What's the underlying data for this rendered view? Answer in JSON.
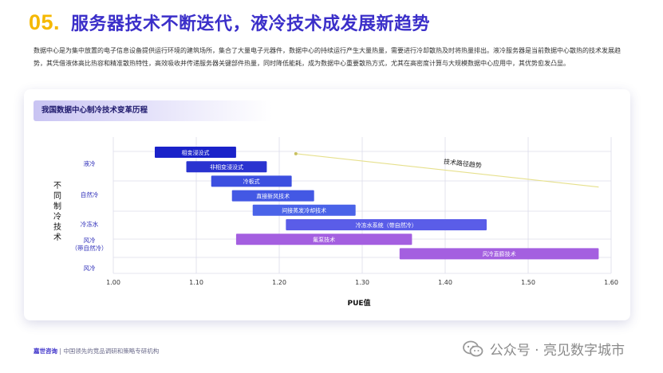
{
  "header": {
    "number": "05.",
    "title": "服务器技术不断迭代，液冷技术成发展新趋势"
  },
  "intro": "数据中心是为集中放置的电子信息设备提供运行环境的建筑场所，集合了大量电子元器件，数据中心的持续运行产生大量热量，需要进行冷却散热及时将热量排出。液冷服务器是当前数据中心散热的技术发展趋势，其凭借液体高比热容和精准散热特性，高效吸收并传递服务器关键部件热量，同时降低能耗，成为数据中心重要散热方式，尤其在高密度计算与大规模数据中心应用中，其优势愈发凸显。",
  "card_title": "我国数据中心制冷技术变革历程",
  "footer": {
    "brand": "嘉世咨询",
    "separator": "|",
    "tagline": "中国领先的竞品调研和策略专研机构"
  },
  "watermark": "公众号 · 亮见数字城市",
  "colors": {
    "title": "#3b2fc9",
    "number": "#f5b800",
    "liquid_dark": "#1a22c9",
    "liquid_mid": "#3c4fe0",
    "liquid_light": "#4a63e8",
    "mixed": "#5a5de8",
    "air": "#a45fe0",
    "trend_line": "#e6e08c"
  },
  "chart_data": {
    "type": "gantt",
    "xlabel": "PUE值",
    "ylabel": "不同制冷技术",
    "xlim": [
      1.0,
      1.6
    ],
    "xticks": [
      1.0,
      1.1,
      1.2,
      1.3,
      1.4,
      1.5,
      1.6
    ],
    "xtick_labels": [
      "1.00",
      "1.10",
      "1.20",
      "1.30",
      "1.40",
      "1.50",
      "1.60"
    ],
    "grid": true,
    "categories": [
      {
        "label": "液冷",
        "lines": [
          "液冷"
        ]
      },
      {
        "label": "自然冷",
        "lines": [
          "自然冷"
        ]
      },
      {
        "label": "冷冻水",
        "lines": [
          "冷冻水"
        ]
      },
      {
        "label": "风冷（带自然冷）",
        "lines": [
          "风冷",
          "（带自然冷）"
        ]
      },
      {
        "label": "风冷",
        "lines": [
          "风冷"
        ]
      }
    ],
    "bars": [
      {
        "label": "相变浸没式",
        "start": 1.05,
        "end": 1.148,
        "color": "#1a22c9"
      },
      {
        "label": "非相变浸没式",
        "start": 1.088,
        "end": 1.185,
        "color": "#2a33d0"
      },
      {
        "label": "冷板式",
        "start": 1.118,
        "end": 1.215,
        "color": "#3c4fe0"
      },
      {
        "label": "直接新风技术",
        "start": 1.143,
        "end": 1.242,
        "color": "#4358e4"
      },
      {
        "label": "间接蒸发冷却技术",
        "start": 1.168,
        "end": 1.292,
        "color": "#4a63e8"
      },
      {
        "label": "冷冻水系统（带自然冷）",
        "start": 1.208,
        "end": 1.45,
        "color": "#5a5de8"
      },
      {
        "label": "氟泵技术",
        "start": 1.148,
        "end": 1.36,
        "color": "#a45fe0"
      },
      {
        "label": "风冷直膨技术",
        "start": 1.345,
        "end": 1.585,
        "color": "#a45fe0"
      }
    ],
    "trend": {
      "label": "技术路径趋势",
      "from": [
        1.22,
        4.9
      ],
      "to": [
        1.585,
        2.6
      ]
    }
  }
}
